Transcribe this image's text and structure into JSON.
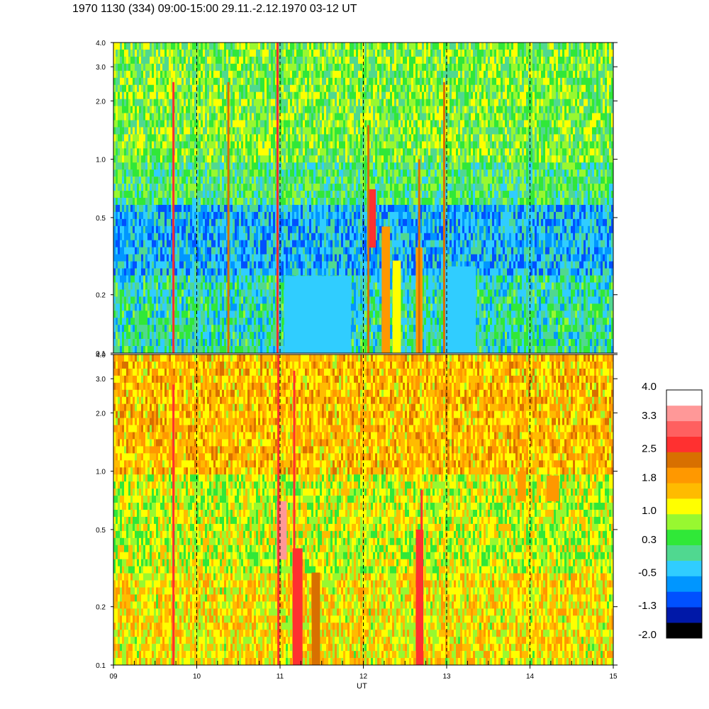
{
  "title": "1970 1130 (334) 09:00-15:00 29.11.-2.12.1970  03-12 UT",
  "chart_data": [
    {
      "type": "heatmap",
      "panel": "upper",
      "x_range": [
        9,
        15
      ],
      "y_range": [
        0.1,
        4.0
      ],
      "y_scale": "log",
      "y_ticks": [
        "4.0",
        "3.0",
        "2.0",
        "1.0",
        "0.5",
        "0.2",
        "0.1"
      ],
      "dashed_vertical_lines_at": [
        10,
        11,
        12,
        13,
        14
      ],
      "background_levels": {
        "above_1.0": 0.6,
        "0.6_to_1.0": 0.3,
        "0.25_to_0.6": -0.5,
        "below_0.25": 0.0
      },
      "vertical_streaks": [
        {
          "x": 9.72,
          "y_top": 2.5,
          "level": 2.5
        },
        {
          "x": 10.38,
          "y_top": 2.5,
          "level": 2.2
        },
        {
          "x": 10.97,
          "y_top": 4.0,
          "level": 2.5
        },
        {
          "x": 12.06,
          "y_top": 1.5,
          "level": 2.2
        },
        {
          "x": 12.67,
          "y_top": 1.0,
          "level": 2.2
        },
        {
          "x": 12.97,
          "y_top": 2.5,
          "level": 2.2
        }
      ],
      "features": [
        {
          "x0": 12.05,
          "x1": 12.15,
          "y0": 0.35,
          "y1": 0.7,
          "level": 2.5
        },
        {
          "x0": 12.22,
          "x1": 12.32,
          "y0": 0.1,
          "y1": 0.45,
          "level": 1.8
        },
        {
          "x0": 12.35,
          "x1": 12.45,
          "y0": 0.1,
          "y1": 0.3,
          "level": 1.0
        },
        {
          "x0": 12.63,
          "x1": 12.71,
          "y0": 0.1,
          "y1": 0.35,
          "level": 1.8
        },
        {
          "x0": 12.97,
          "x1": 13.35,
          "y0": 0.1,
          "y1": 0.28,
          "level": -0.5
        },
        {
          "x0": 11.05,
          "x1": 11.85,
          "y0": 0.1,
          "y1": 0.25,
          "level": -0.5
        }
      ]
    },
    {
      "type": "heatmap",
      "panel": "lower",
      "x_range": [
        9,
        15
      ],
      "y_range": [
        0.1,
        4.0
      ],
      "y_scale": "log",
      "x_ticks": [
        "09",
        "10",
        "11",
        "12",
        "13",
        "14",
        "15"
      ],
      "y_ticks": [
        "4.0",
        "3.0",
        "2.0",
        "1.0",
        "0.5",
        "0.2",
        "0.1"
      ],
      "xlabel": "UT",
      "dashed_vertical_lines_at": [
        10,
        11,
        12,
        13,
        14
      ],
      "background_levels": {
        "above_1.0": 1.6,
        "0.3_to_1.0": 1.0,
        "below_0.3": 1.3
      },
      "vertical_streaks": [
        {
          "x": 9.72,
          "y_top": 2.8,
          "level": 2.5
        },
        {
          "x": 10.98,
          "y_top": 4.0,
          "level": 2.5
        },
        {
          "x": 11.17,
          "y_top": 3.3,
          "level": 2.5
        },
        {
          "x": 12.7,
          "y_top": 0.8,
          "level": 2.5
        }
      ],
      "features": [
        {
          "x0": 10.96,
          "x1": 11.08,
          "y0": 0.35,
          "y1": 0.7,
          "level": 3.3
        },
        {
          "x0": 11.15,
          "x1": 11.27,
          "y0": 0.1,
          "y1": 0.4,
          "level": 2.5
        },
        {
          "x0": 11.38,
          "x1": 11.48,
          "y0": 0.1,
          "y1": 0.3,
          "level": 2.2
        },
        {
          "x0": 12.63,
          "x1": 12.72,
          "y0": 0.1,
          "y1": 0.5,
          "level": 2.5
        },
        {
          "x0": 13.85,
          "x1": 13.95,
          "y0": 0.7,
          "y1": 1.0,
          "level": 1.8
        },
        {
          "x0": 14.2,
          "x1": 14.35,
          "y0": 0.7,
          "y1": 0.95,
          "level": 1.8
        }
      ]
    }
  ],
  "colorbar": {
    "labels": [
      "4.0",
      "3.3",
      "2.5",
      "1.8",
      "1.0",
      "0.3",
      "-0.5",
      "-1.3",
      "-2.0"
    ],
    "range": [
      -2.0,
      4.0
    ],
    "colors": [
      "#000000",
      "#0018a8",
      "#0050ff",
      "#0096ff",
      "#30cdff",
      "#50d890",
      "#30e838",
      "#98f830",
      "#ffff00",
      "#ffbb00",
      "#ff9800",
      "#d87000",
      "#ff3030",
      "#ff6060",
      "#ff9898",
      "#ffffff"
    ]
  }
}
